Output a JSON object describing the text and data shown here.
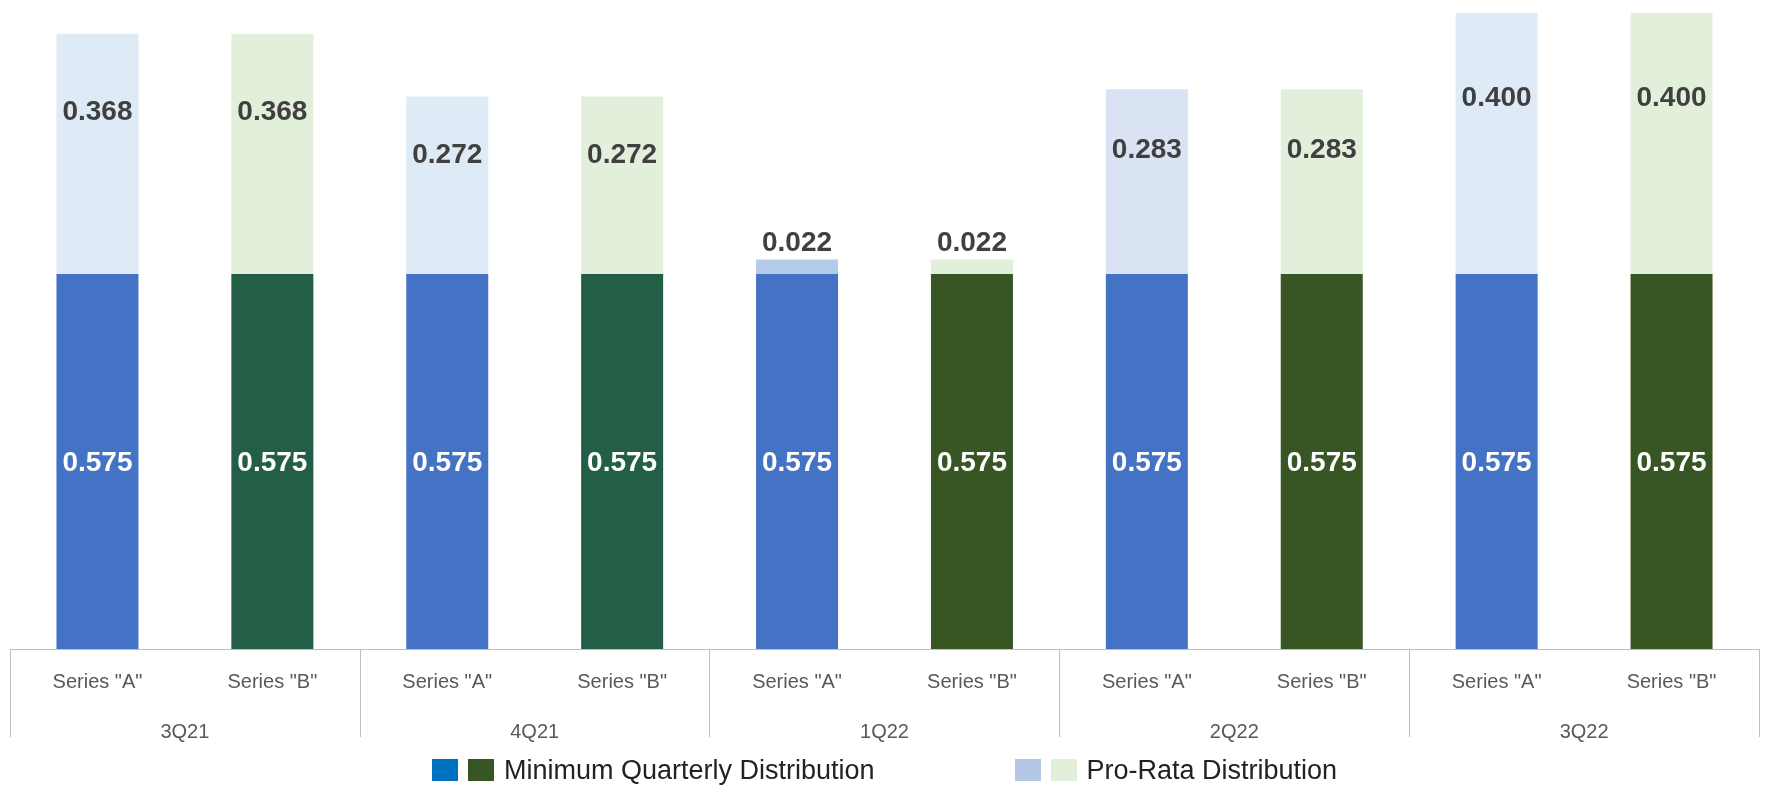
{
  "chart_data": {
    "type": "bar",
    "stacked": true,
    "tick_labels": "x",
    "legend": "bottom",
    "categories": [
      "Series \"A\"",
      "Series \"B\"",
      "Series \"A\"",
      "Series \"B\"",
      "Series \"A\"",
      "Series \"B\"",
      "Series \"A\"",
      "Series \"B\"",
      "Series \"A\"",
      "Series \"B\""
    ],
    "annotations": [
      "3Q21",
      "4Q21",
      "1Q22",
      "2Q22",
      "3Q22"
    ],
    "series": [
      {
        "name": "Minimum Quarterly Distribution",
        "color": "#0070c0",
        "colors": [
          "#4472c4",
          "#235f47",
          "#4472c4",
          "#235f47",
          "#4472c4",
          "#375623",
          "#4472c4",
          "#375623",
          "#4472c4",
          "#375623"
        ],
        "values": [
          0.575,
          0.575,
          0.575,
          0.575,
          0.575,
          0.575,
          0.575,
          0.575,
          0.575,
          0.575
        ],
        "value_labels": [
          "0.575",
          "0.575",
          "0.575",
          "0.575",
          "0.575",
          "0.575",
          "0.575",
          "0.575",
          "0.575",
          "0.575"
        ]
      },
      {
        "name": "Pro-Rata Distribution",
        "color": "#b4c7e7",
        "colors": [
          "#deeaf6",
          "#e2efda",
          "#deeaf6",
          "#e2efda",
          "#b4cbea",
          "#e2efda",
          "#dae3f3",
          "#e2efda",
          "#deeaf6",
          "#e2efda"
        ],
        "values": [
          0.368,
          0.368,
          0.272,
          0.272,
          0.022,
          0.022,
          0.283,
          0.283,
          0.4,
          0.4
        ],
        "value_labels": [
          "0.368",
          "0.368",
          "0.272",
          "0.272",
          "0.022",
          "0.022",
          "0.283",
          "0.283",
          "0.400",
          "0.400"
        ]
      }
    ]
  }
}
